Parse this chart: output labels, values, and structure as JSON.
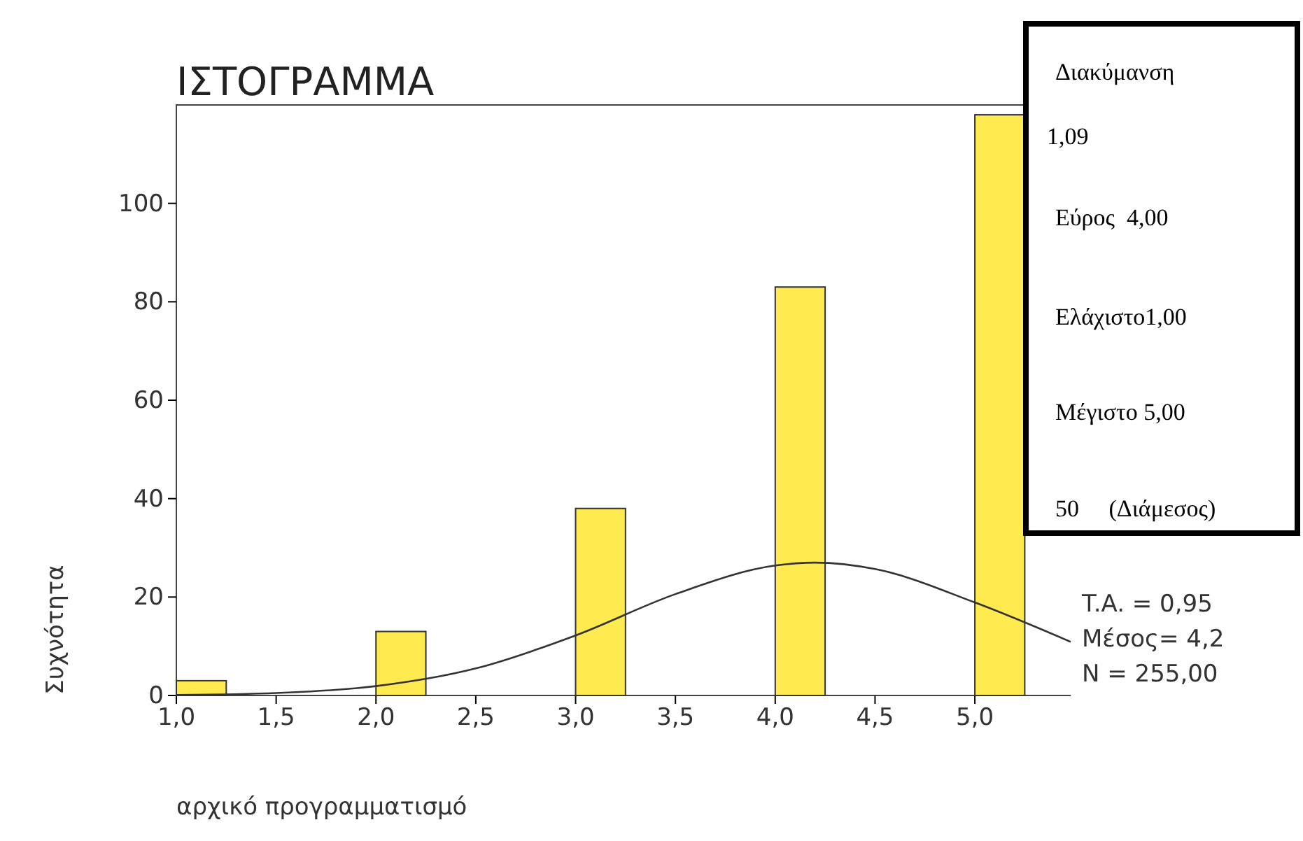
{
  "chart_data": {
    "type": "histogram",
    "title": "ΙΣΤΟΓΡΑΜΜΑ",
    "xlabel": "αρχικό προγραμματισμό",
    "ylabel": "Συχνότητα",
    "bins": [
      1,
      1.25,
      2,
      2.25,
      3,
      3.25,
      4,
      4.25,
      5,
      5.25
    ],
    "values": [
      3,
      0,
      13,
      0,
      38,
      0,
      83,
      0,
      118
    ],
    "color": "#ffeb50",
    "series": [
      {
        "type": "line",
        "color": "#333333",
        "x": [
          1,
          1.5,
          2,
          2.5,
          3,
          3.5,
          4,
          4.2,
          4.5,
          5,
          5.48
        ],
        "values": [
          0.1,
          0.5,
          1.9,
          5.5,
          12.2,
          20.6,
          26.4,
          27,
          25.7,
          18.9,
          10.9
        ]
      }
    ],
    "xlim": [
      1,
      5.48
    ],
    "ylim": [
      0,
      120
    ],
    "xticks": [
      {
        "value": 1,
        "label": "1,0"
      },
      {
        "value": 1.5,
        "label": "1,5"
      },
      {
        "value": 2,
        "label": "2,0"
      },
      {
        "value": 2.5,
        "label": "2,5"
      },
      {
        "value": 3,
        "label": "3,0"
      },
      {
        "value": 3.5,
        "label": "3,5"
      },
      {
        "value": 4,
        "label": "4,0"
      },
      {
        "value": 4.5,
        "label": "4,5"
      },
      {
        "value": 5,
        "label": "5,0"
      }
    ],
    "yticks": [
      0,
      20,
      40,
      60,
      80,
      100
    ],
    "grid": false,
    "annotations": [
      "Διακύμανση",
      "1,09",
      "Εύρος  4,00",
      "Ελάχιστο1,00",
      "Μέγιστο 5,00",
      "50     (Διάμεσος)",
      "T.A. = 0,95",
      "Μέσος= 4,2",
      "N = 255,00"
    ]
  }
}
